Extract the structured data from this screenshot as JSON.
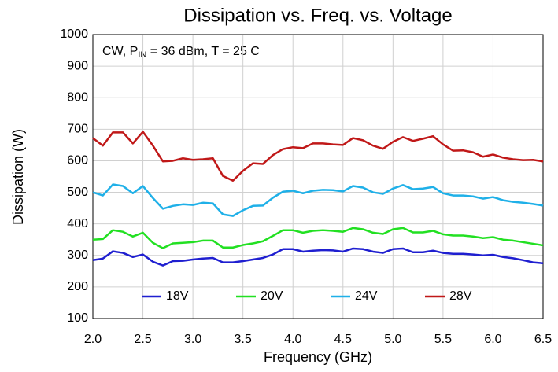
{
  "chart_data": {
    "type": "line",
    "title": "Dissipation vs. Freq. vs. Voltage",
    "xlabel": "Frequency (GHz)",
    "ylabel": "Dissipation (W)",
    "annotation": {
      "text": "CW, P",
      "sub": "IN",
      "rest": " = 36 dBm, T = 25 C"
    },
    "x": [
      2.0,
      2.1,
      2.2,
      2.3,
      2.4,
      2.5,
      2.6,
      2.7,
      2.8,
      2.9,
      3.0,
      3.1,
      3.2,
      3.3,
      3.4,
      3.5,
      3.6,
      3.7,
      3.8,
      3.9,
      4.0,
      4.1,
      4.2,
      4.3,
      4.4,
      4.5,
      4.6,
      4.7,
      4.8,
      4.9,
      5.0,
      5.1,
      5.2,
      5.3,
      5.4,
      5.5,
      5.6,
      5.7,
      5.8,
      5.9,
      6.0,
      6.1,
      6.2,
      6.3,
      6.4,
      6.5
    ],
    "series": [
      {
        "name": "18V",
        "color": "#1f1fd0",
        "values": [
          285,
          290,
          313,
          308,
          295,
          303,
          280,
          268,
          282,
          283,
          287,
          290,
          292,
          278,
          278,
          282,
          287,
          292,
          303,
          320,
          320,
          312,
          315,
          317,
          316,
          312,
          322,
          320,
          312,
          308,
          320,
          322,
          310,
          310,
          315,
          308,
          305,
          305,
          303,
          300,
          302,
          295,
          291,
          285,
          278,
          275
        ]
      },
      {
        "name": "20V",
        "color": "#22e022",
        "values": [
          350,
          352,
          380,
          375,
          360,
          372,
          340,
          323,
          338,
          340,
          342,
          347,
          347,
          325,
          325,
          333,
          338,
          345,
          362,
          380,
          380,
          372,
          378,
          380,
          378,
          375,
          387,
          383,
          372,
          368,
          383,
          387,
          373,
          373,
          378,
          367,
          363,
          363,
          360,
          355,
          358,
          350,
          347,
          342,
          337,
          332
        ]
      },
      {
        "name": "24V",
        "color": "#1fb0e8",
        "values": [
          500,
          490,
          525,
          520,
          497,
          520,
          482,
          448,
          457,
          462,
          460,
          467,
          465,
          430,
          425,
          443,
          457,
          458,
          483,
          502,
          505,
          497,
          505,
          508,
          507,
          503,
          520,
          515,
          500,
          495,
          512,
          523,
          510,
          512,
          517,
          497,
          490,
          490,
          487,
          480,
          485,
          475,
          470,
          467,
          463,
          458
        ]
      },
      {
        "name": "28V",
        "color": "#c01818",
        "values": [
          672,
          648,
          690,
          690,
          655,
          692,
          648,
          598,
          600,
          608,
          603,
          605,
          608,
          552,
          537,
          568,
          592,
          590,
          618,
          637,
          643,
          640,
          655,
          655,
          652,
          650,
          672,
          665,
          648,
          638,
          660,
          675,
          663,
          670,
          678,
          652,
          632,
          633,
          627,
          613,
          620,
          610,
          605,
          602,
          603,
          598
        ]
      }
    ],
    "xlim": [
      2.0,
      6.5
    ],
    "xticks": [
      {
        "value": 2,
        "label": "2.0"
      },
      2.5,
      {
        "value": 3,
        "label": "3.0"
      },
      3.5,
      {
        "value": 4,
        "label": "4.0"
      },
      4.5,
      {
        "value": 5,
        "label": "5.0"
      },
      5.5,
      {
        "value": 6,
        "label": "6.0"
      },
      6.5
    ],
    "ylim": [
      100,
      1000
    ],
    "yticks": [
      100,
      200,
      300,
      400,
      500,
      600,
      700,
      800,
      900,
      1000
    ],
    "grid": true,
    "legend": "bottom"
  }
}
